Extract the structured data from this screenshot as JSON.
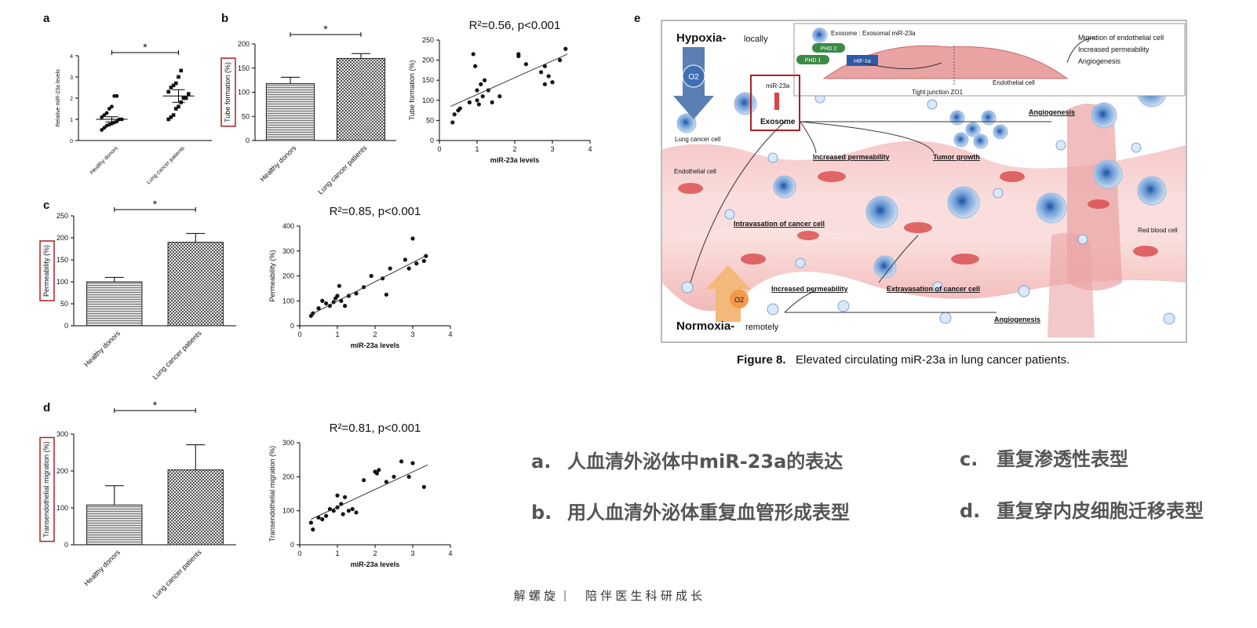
{
  "chart_data": [
    {
      "type": "strip",
      "panel": "a",
      "categories": [
        "Healthy donors",
        "Lung cancer patients"
      ],
      "groups": [
        [
          0.5,
          0.6,
          0.7,
          0.75,
          0.8,
          0.85,
          0.9,
          1.0,
          1.0,
          1.1,
          1.2,
          1.3,
          1.5,
          1.6,
          2.1,
          2.1
        ],
        [
          1.0,
          1.1,
          1.2,
          1.5,
          1.6,
          1.8,
          2.0,
          2.0,
          2.2,
          2.3,
          2.5,
          2.6,
          2.7,
          3.0,
          3.3
        ]
      ],
      "means": [
        1.0,
        2.1
      ],
      "errors": [
        0.12,
        0.3
      ],
      "ylabel": "Relative miR-23a levels",
      "ylim": [
        0,
        4
      ],
      "yticks": [
        0,
        1,
        2,
        3,
        4
      ],
      "significance": "*"
    },
    {
      "type": "bar",
      "panel": "b",
      "categories": [
        "Healthy donors",
        "Lung cancer patients"
      ],
      "values": [
        118,
        170
      ],
      "errors": [
        13,
        10
      ],
      "ylabel": "Tube formation (%)",
      "ylim": [
        0,
        200
      ],
      "yticks": [
        0,
        50,
        100,
        150,
        200
      ],
      "significance": "*"
    },
    {
      "type": "scatter",
      "title": "R²=0.56, p<0.001",
      "x": [
        0.35,
        0.4,
        0.5,
        0.55,
        0.8,
        0.9,
        0.95,
        1.0,
        1.0,
        1.05,
        1.1,
        1.15,
        1.2,
        1.3,
        1.4,
        1.6,
        2.1,
        2.1,
        2.3,
        2.7,
        2.8,
        2.8,
        2.9,
        3.0,
        3.2,
        3.35
      ],
      "y": [
        45,
        65,
        75,
        80,
        95,
        215,
        185,
        125,
        100,
        90,
        140,
        110,
        150,
        125,
        95,
        110,
        215,
        210,
        190,
        170,
        185,
        140,
        160,
        145,
        200,
        228
      ],
      "trendline": {
        "x": [
          0.3,
          3.4
        ],
        "y": [
          85,
          215
        ]
      },
      "xlabel": "miR-23a levels",
      "ylabel": "Tube formation (%)",
      "xlim": [
        0,
        4
      ],
      "xticks": [
        0,
        1,
        2,
        3,
        4
      ],
      "ylim": [
        0,
        250
      ],
      "yticks": [
        0,
        50,
        100,
        150,
        200,
        250
      ]
    },
    {
      "type": "bar",
      "panel": "c",
      "categories": [
        "Healthy donors",
        "Lung cancer patients"
      ],
      "values": [
        100,
        190
      ],
      "errors": [
        10,
        20
      ],
      "ylabel": "Permeability (%)",
      "ylim": [
        0,
        250
      ],
      "yticks": [
        0,
        50,
        100,
        150,
        200,
        250
      ],
      "significance": "*"
    },
    {
      "type": "scatter",
      "title": "R²=0.85, p<0.001",
      "x": [
        0.3,
        0.35,
        0.5,
        0.6,
        0.7,
        0.8,
        0.9,
        0.95,
        1.0,
        1.05,
        1.1,
        1.2,
        1.3,
        1.5,
        1.7,
        1.9,
        2.2,
        2.3,
        2.4,
        2.8,
        2.9,
        3.0,
        3.1,
        3.3,
        3.35
      ],
      "y": [
        40,
        50,
        70,
        100,
        90,
        80,
        95,
        110,
        120,
        160,
        100,
        80,
        120,
        130,
        155,
        200,
        190,
        125,
        230,
        265,
        230,
        350,
        250,
        260,
        280
      ],
      "trendline": {
        "x": [
          0.3,
          3.4
        ],
        "y": [
          45,
          285
        ]
      },
      "xlabel": "miR-23a levels",
      "ylabel": "Permeability (%)",
      "xlim": [
        0,
        4
      ],
      "xticks": [
        0,
        1,
        2,
        3,
        4
      ],
      "ylim": [
        0,
        400
      ],
      "yticks": [
        0,
        100,
        200,
        300,
        400
      ]
    },
    {
      "type": "bar",
      "panel": "d",
      "categories": [
        "Healthy donors",
        "Lung cancer patients"
      ],
      "values": [
        108,
        203
      ],
      "errors": [
        52,
        68
      ],
      "ylabel": "Transendothelial migration (%)",
      "ylim": [
        0,
        300
      ],
      "yticks": [
        0,
        100,
        200,
        300
      ],
      "significance": "*"
    },
    {
      "type": "scatter",
      "title": "R²=0.81, p<0.001",
      "x": [
        0.3,
        0.35,
        0.5,
        0.6,
        0.7,
        0.8,
        0.9,
        1.0,
        1.0,
        1.1,
        1.15,
        1.2,
        1.3,
        1.4,
        1.5,
        1.7,
        2.0,
        2.05,
        2.1,
        2.3,
        2.5,
        2.7,
        2.9,
        3.0,
        3.3
      ],
      "y": [
        65,
        45,
        80,
        75,
        85,
        105,
        100,
        145,
        110,
        120,
        90,
        140,
        100,
        105,
        95,
        190,
        215,
        210,
        220,
        185,
        200,
        245,
        200,
        240,
        170
      ],
      "trendline": {
        "x": [
          0.3,
          3.4
        ],
        "y": [
          75,
          235
        ]
      },
      "xlabel": "miR-23a levels",
      "ylabel": "Transendothelial migration (%)",
      "xlim": [
        0,
        4
      ],
      "xticks": [
        0,
        1,
        2,
        3,
        4
      ],
      "ylim": [
        0,
        300
      ],
      "yticks": [
        0,
        100,
        200,
        300
      ]
    }
  ],
  "diagram": {
    "panel": "e",
    "labels": [
      "Hypoxia-",
      "locally",
      "O2",
      "Exosome : Exosomal miR-23a",
      "Migration of endothelial cell",
      "Increased permeability",
      "Angiogenesis",
      "PHD 2",
      "PHD 1",
      "HIF-1α",
      "Tight junction ZO1",
      "Endothelial cell",
      "miR-23a",
      "Exosome",
      "Lung cancer cell",
      "Angiogenesis",
      "Increased permeability",
      "Tumor growth",
      "Endothelial cell",
      "Intravasation of cancer cell",
      "Red blood cell",
      "Increased permeability",
      "Extravasation of cancer cell",
      "Angiogenesis",
      "Normoxia-",
      "remotely",
      "O2"
    ],
    "caption": {
      "label": "Figure 8.",
      "text": "Elevated circulating miR-23a in lung cancer patients."
    }
  },
  "notes": [
    {
      "marker": "a.",
      "text": "人血清外泌体中miR-23a的表达"
    },
    {
      "marker": "b.",
      "text": "用人血清外泌体重复血管形成表型"
    },
    {
      "marker": "c.",
      "text": "重复渗透性表型"
    },
    {
      "marker": "d.",
      "text": "重复穿内皮细胞迁移表型"
    }
  ],
  "footer": {
    "left": "解 螺 旋",
    "right": "陪 伴 医 生 科 研 成 长"
  }
}
